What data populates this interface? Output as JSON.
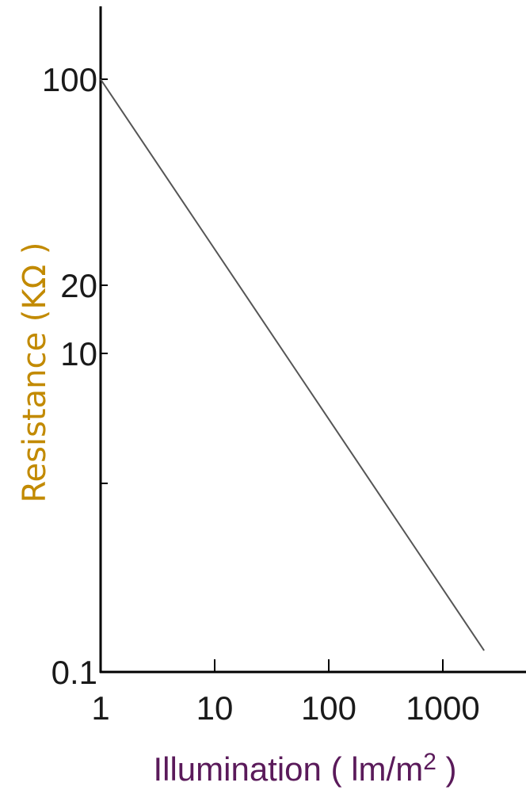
{
  "chart_data": {
    "type": "line",
    "xlabel": "Illumination ( lm/m2 )",
    "xlabel_parts": {
      "main": "Illumination ( lm/m",
      "sup": "2",
      "close": " )"
    },
    "ylabel": "Resistance (KΩ )",
    "x_scale": "log",
    "y_scale": "custom",
    "xlim": [
      1,
      2500
    ],
    "x_ticks": [
      {
        "value": 1,
        "label": "1"
      },
      {
        "value": 10,
        "label": "10"
      },
      {
        "value": 100,
        "label": "100"
      },
      {
        "value": 1000,
        "label": "1000"
      }
    ],
    "y_ticks": [
      {
        "value": 100,
        "label": "100"
      },
      {
        "value": 20,
        "label": "20"
      },
      {
        "value": 10,
        "label": "10"
      },
      {
        "value": 1,
        "label": ""
      },
      {
        "value": 0.1,
        "label": "0.1"
      }
    ],
    "series": [
      {
        "x": [
          1,
          2300
        ],
        "y": [
          100,
          0.13
        ]
      }
    ],
    "grid": false,
    "colors": {
      "line": "#555555",
      "axes": "#000000",
      "ylabel": "#c28a00",
      "xlabel": "#5a1a5a"
    }
  }
}
